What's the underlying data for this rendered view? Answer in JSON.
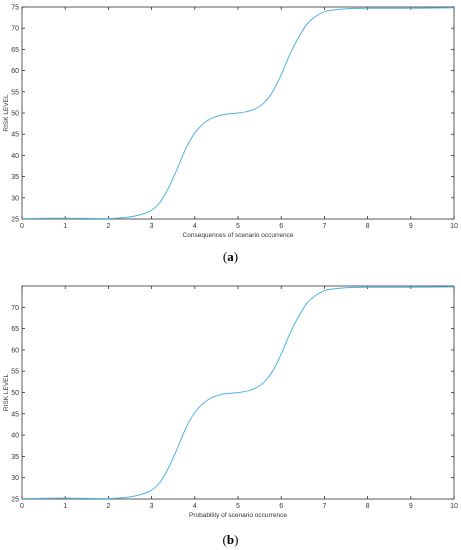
{
  "figure": {
    "captions": [
      "(a)",
      "(b)"
    ],
    "caption_letters": [
      "a",
      "b"
    ]
  },
  "chart_data": [
    {
      "type": "line",
      "xlabel": "Consequences of scenario occurrence",
      "ylabel": "RISK LEVEL",
      "xlim": [
        0,
        10
      ],
      "ylim": [
        25,
        75
      ],
      "xticks": [
        0,
        1,
        2,
        3,
        4,
        5,
        6,
        7,
        8,
        9,
        10
      ],
      "yticks": [
        25,
        30,
        35,
        40,
        45,
        50,
        55,
        60,
        65,
        70,
        75
      ],
      "grid": false,
      "color": "#4fb3e3",
      "series": [
        {
          "x": [
            0,
            1,
            2,
            2.5,
            2.8,
            3.0,
            3.2,
            3.4,
            3.6,
            3.8,
            4.0,
            4.2,
            4.4,
            4.6,
            4.8,
            5.0,
            5.2,
            5.4,
            5.6,
            5.8,
            6.0,
            6.2,
            6.4,
            6.6,
            6.8,
            7.0,
            7.2,
            7.5,
            8.0,
            9.0,
            10.0
          ],
          "y": [
            25.1,
            25.2,
            25.1,
            25.5,
            26.2,
            27.1,
            29.0,
            32.5,
            37.0,
            41.8,
            45.3,
            47.5,
            48.8,
            49.5,
            49.8,
            50.0,
            50.3,
            51.0,
            52.4,
            55.0,
            59.0,
            63.8,
            67.8,
            71.0,
            72.8,
            73.9,
            74.3,
            74.6,
            74.7,
            74.7,
            74.8
          ]
        }
      ]
    },
    {
      "type": "line",
      "xlabel": "Probability of scenario occurrence",
      "ylabel": "RISK LEVEL",
      "xlim": [
        0,
        10
      ],
      "ylim": [
        25,
        75
      ],
      "xticks": [
        0,
        1,
        2,
        3,
        4,
        5,
        6,
        7,
        8,
        9,
        10
      ],
      "yticks": [
        25,
        30,
        35,
        40,
        45,
        50,
        55,
        60,
        65,
        70
      ],
      "grid": false,
      "color": "#4fb3e3",
      "series": [
        {
          "x": [
            0,
            1,
            2,
            2.5,
            2.8,
            3.0,
            3.2,
            3.4,
            3.6,
            3.8,
            4.0,
            4.2,
            4.4,
            4.6,
            4.8,
            5.0,
            5.2,
            5.4,
            5.6,
            5.8,
            6.0,
            6.2,
            6.4,
            6.6,
            6.8,
            7.0,
            7.2,
            7.5,
            8.0,
            9.0,
            10.0
          ],
          "y": [
            25.1,
            25.2,
            25.1,
            25.5,
            26.2,
            27.1,
            29.0,
            32.5,
            37.0,
            41.8,
            45.3,
            47.5,
            48.8,
            49.5,
            49.8,
            50.0,
            50.3,
            51.0,
            52.4,
            55.0,
            59.0,
            63.8,
            67.8,
            71.0,
            72.8,
            73.9,
            74.3,
            74.6,
            74.7,
            74.7,
            74.8
          ]
        }
      ]
    }
  ]
}
